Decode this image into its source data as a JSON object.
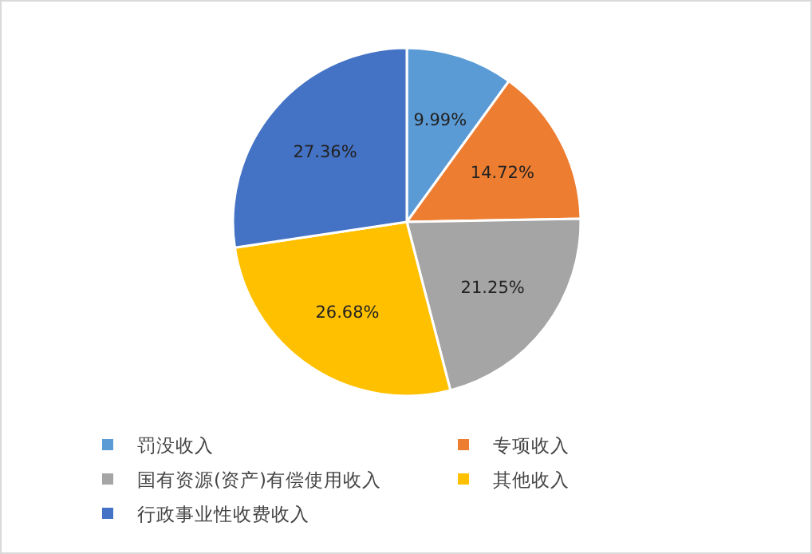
{
  "chart_data": {
    "type": "pie",
    "categories": [
      "罚没收入",
      "专项收入",
      "国有资源(资产)有偿使用收入",
      "其他收入",
      "行政事业性收费收入"
    ],
    "values": [
      9.99,
      14.72,
      21.25,
      26.68,
      27.36
    ],
    "value_labels": [
      "9.99%",
      "14.72%",
      "21.25%",
      "26.68%",
      "27.36%"
    ],
    "colors": [
      "#5b9bd5",
      "#ed7d31",
      "#a5a5a5",
      "#ffc000",
      "#4472c4"
    ],
    "legend": "bottom"
  }
}
